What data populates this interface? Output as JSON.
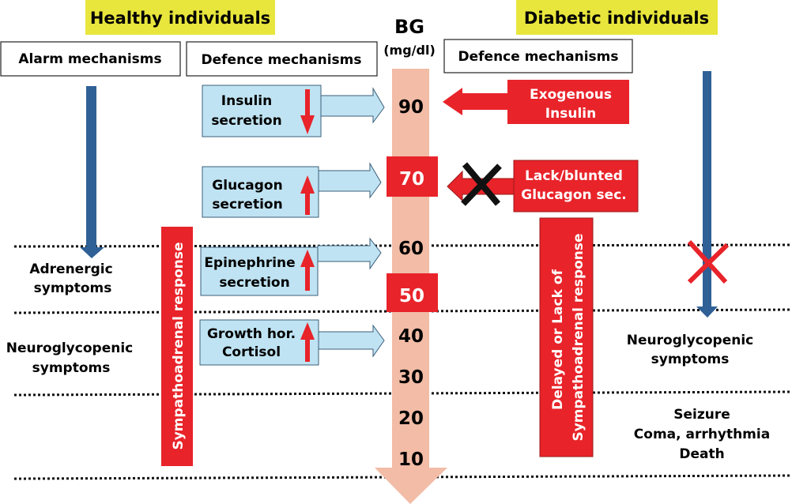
{
  "colors": {
    "yellow": "#e8e63c",
    "blue_arrow": "#2f6096",
    "light_blue": "#bfe3f2",
    "red": "#e8232a",
    "bg_bar": "#f2bca6"
  },
  "header": {
    "healthy": "Healthy individuals",
    "diabetic": "Diabetic individuals",
    "alarm": "Alarm mechanisms",
    "defence_left": "Defence mechanisms",
    "defence_right": "Defence mechanisms",
    "bg": "BG",
    "bg_unit": "(mg/dl)"
  },
  "scale": [
    "90",
    "70",
    "60",
    "50",
    "40",
    "30",
    "20",
    "10"
  ],
  "healthy_defence": [
    {
      "line1": "Insulin",
      "line2": "secretion",
      "direction": "down"
    },
    {
      "line1": "Glucagon",
      "line2": "secretion",
      "direction": "up"
    },
    {
      "line1": "Epinephrine",
      "line2": "secretion",
      "direction": "up"
    },
    {
      "line1": "Growth hor.",
      "line2": "Cortisol",
      "direction": "up"
    }
  ],
  "healthy_sympathoadrenal": "Sympathoadrenal response",
  "healthy_symptoms": [
    {
      "line1": "Adrenergic",
      "line2": "symptoms"
    },
    {
      "line1": "Neuroglycopenic",
      "line2": "symptoms"
    }
  ],
  "diabetic_defence": [
    {
      "line1": "Exogenous",
      "line2": "Insulin"
    },
    {
      "line1": "Lack/blunted",
      "line2": "Glucagon sec."
    }
  ],
  "diabetic_sympathoadrenal": {
    "line1": "Delayed or Lack of",
    "line2": "Sympathoadrenal response"
  },
  "diabetic_symptoms": {
    "neuro": {
      "line1": "Neuroglycopenic",
      "line2": "symptoms"
    },
    "severe": [
      "Seizure",
      "Coma, arrhythmia",
      "Death"
    ]
  }
}
